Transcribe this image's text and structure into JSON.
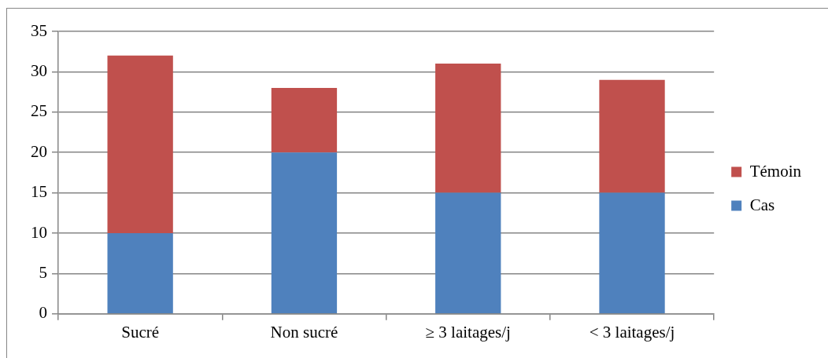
{
  "chart_data": {
    "type": "bar",
    "stacked": true,
    "categories": [
      "Sucré",
      "Non sucré",
      "≥ 3 laitages/j",
      "< 3 laitages/j"
    ],
    "series": [
      {
        "name": "Cas",
        "color": "#4f81bd",
        "values": [
          10,
          20,
          15,
          15
        ]
      },
      {
        "name": "Témoin",
        "color": "#c0504d",
        "values": [
          22,
          8,
          16,
          14
        ]
      }
    ],
    "ylim": [
      0,
      35
    ],
    "yticks": [
      0,
      5,
      10,
      15,
      20,
      25,
      30,
      35
    ],
    "grid": "y",
    "legend": "right"
  }
}
